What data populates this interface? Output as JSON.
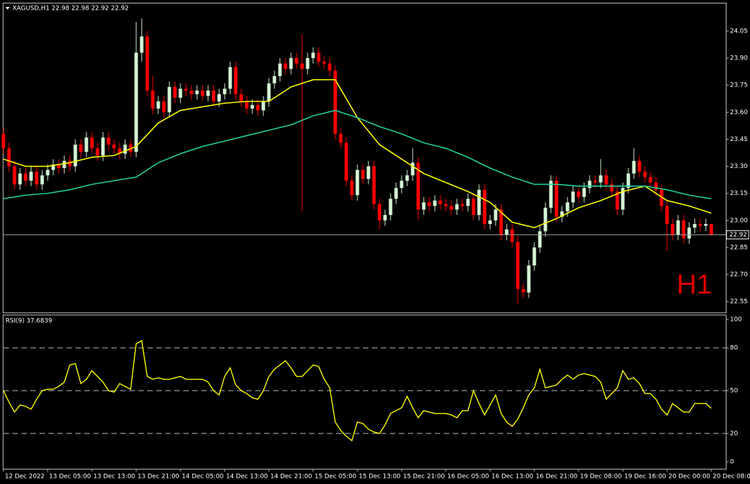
{
  "chart_data": [
    {
      "type": "candlestick",
      "title": "XAGUSD,H1  22.98 22.98 22.92 22.92",
      "watermark": "H1",
      "categories": [
        "12 Dec 2022",
        null,
        null,
        null,
        null,
        null,
        null,
        null,
        "13 Dec 05:00",
        null,
        null,
        null,
        null,
        null,
        null,
        null,
        "13 Dec 13:00",
        null,
        null,
        null,
        null,
        null,
        null,
        null,
        "13 Dec 21:00",
        null,
        null,
        null,
        null,
        null,
        null,
        null,
        "14 Dec 05:00",
        null,
        null,
        null,
        null,
        null,
        null,
        null,
        "14 Dec 13:00",
        null,
        null,
        null,
        null,
        null,
        null,
        null,
        "14 Dec 21:00",
        null,
        null,
        null,
        null,
        null,
        null,
        null,
        "15 Dec 05:00",
        null,
        null,
        null,
        null,
        null,
        null,
        null,
        "15 Dec 13:00",
        null,
        null,
        null,
        null,
        null,
        null,
        null,
        "15 Dec 21:00",
        null,
        null,
        null,
        null,
        null,
        null,
        null,
        "16 Dec 05:00",
        null,
        null,
        null,
        null,
        null,
        null,
        null,
        "16 Dec 13:00",
        null,
        null,
        null,
        null,
        null,
        null,
        null,
        "16 Dec 21:00",
        null,
        null,
        null,
        null,
        null,
        null,
        null,
        "19 Dec 08:00",
        null,
        null,
        null,
        null,
        null,
        null,
        null,
        "19 Dec 16:00",
        null,
        null,
        null,
        null,
        null,
        null,
        null,
        "20 Dec 00:00",
        null,
        null,
        null,
        null,
        null,
        null,
        null,
        "20 Dec 08:00"
      ],
      "open": [
        23.48,
        23.4,
        23.3,
        23.2,
        23.26,
        23.22,
        23.27,
        23.2,
        23.25,
        23.28,
        23.31,
        23.29,
        23.33,
        23.3,
        23.42,
        23.38,
        23.46,
        23.4,
        23.36,
        23.46,
        23.42,
        23.4,
        23.37,
        23.42,
        23.38,
        23.93,
        24.02,
        23.72,
        23.62,
        23.66,
        23.6,
        23.74,
        23.68,
        23.73,
        23.72,
        23.7,
        23.72,
        23.69,
        23.72,
        23.66,
        23.7,
        23.73,
        23.85,
        23.7,
        23.66,
        23.62,
        23.64,
        23.61,
        23.66,
        23.76,
        23.8,
        23.87,
        23.84,
        23.9,
        23.87,
        23.84,
        23.9,
        23.93,
        23.88,
        23.87,
        23.83,
        23.48,
        23.43,
        23.22,
        23.14,
        23.28,
        23.23,
        23.3,
        23.09,
        23.0,
        23.03,
        23.12,
        23.18,
        23.22,
        23.25,
        23.32,
        23.06,
        23.1,
        23.08,
        23.11,
        23.09,
        23.08,
        23.06,
        23.09,
        23.08,
        23.12,
        23.03,
        23.17,
        22.98,
        23.0,
        23.06,
        22.92,
        22.95,
        22.88,
        22.62,
        22.6,
        22.75,
        22.85,
        22.94,
        23.07,
        23.22,
        23.02,
        23.05,
        23.1,
        23.16,
        23.13,
        23.18,
        23.22,
        23.21,
        23.25,
        23.2,
        23.16,
        23.06,
        23.18,
        23.26,
        23.33,
        23.27,
        23.24,
        23.21,
        23.17,
        23.08,
        22.98,
        22.92,
        23.0,
        22.9,
        22.96,
        22.98,
        22.97,
        22.98
      ],
      "high": [
        23.51,
        23.43,
        23.33,
        23.29,
        23.29,
        23.3,
        23.3,
        23.28,
        23.31,
        23.34,
        23.34,
        23.36,
        23.36,
        23.45,
        23.45,
        23.49,
        23.49,
        23.43,
        23.49,
        23.49,
        23.45,
        23.43,
        23.45,
        23.45,
        24.1,
        24.12,
        24.05,
        23.8,
        23.69,
        23.69,
        23.77,
        23.77,
        23.76,
        23.76,
        23.75,
        23.75,
        23.75,
        23.75,
        23.75,
        23.73,
        23.76,
        23.88,
        23.88,
        23.73,
        23.69,
        23.67,
        23.67,
        23.69,
        23.79,
        23.83,
        23.9,
        23.9,
        23.93,
        23.93,
        24.03,
        23.93,
        23.96,
        23.96,
        23.91,
        23.9,
        23.86,
        23.51,
        23.46,
        23.25,
        23.31,
        23.31,
        23.33,
        23.33,
        23.12,
        23.06,
        23.15,
        23.21,
        23.25,
        23.28,
        23.4,
        23.35,
        23.13,
        23.13,
        23.14,
        23.14,
        23.12,
        23.11,
        23.12,
        23.12,
        23.15,
        23.15,
        23.2,
        23.2,
        23.03,
        23.09,
        23.09,
        22.98,
        22.98,
        22.91,
        22.65,
        22.78,
        22.88,
        22.97,
        23.1,
        23.25,
        23.25,
        23.08,
        23.13,
        23.19,
        23.19,
        23.21,
        23.25,
        23.25,
        23.34,
        23.28,
        23.23,
        23.19,
        23.21,
        23.29,
        23.4,
        23.36,
        23.3,
        23.27,
        23.24,
        23.2,
        23.11,
        23.01,
        23.03,
        23.03,
        22.99,
        23.01,
        23.01,
        23.01,
        22.98
      ],
      "low": [
        23.37,
        23.27,
        23.17,
        23.17,
        23.19,
        23.19,
        23.17,
        23.17,
        23.22,
        23.25,
        23.26,
        23.26,
        23.27,
        23.27,
        23.35,
        23.35,
        23.37,
        23.33,
        23.33,
        23.39,
        23.37,
        23.34,
        23.34,
        23.35,
        23.35,
        23.88,
        23.69,
        23.59,
        23.59,
        23.57,
        23.57,
        23.65,
        23.65,
        23.69,
        23.67,
        23.67,
        23.66,
        23.66,
        23.63,
        23.63,
        23.67,
        23.7,
        23.67,
        23.63,
        23.59,
        23.59,
        23.58,
        23.58,
        23.63,
        23.73,
        23.77,
        23.81,
        23.81,
        23.84,
        23.05,
        23.81,
        23.87,
        23.85,
        23.84,
        23.8,
        23.45,
        23.4,
        23.19,
        23.11,
        23.11,
        23.2,
        23.2,
        23.06,
        22.95,
        22.97,
        23.0,
        23.09,
        23.15,
        23.19,
        23.22,
        23.0,
        23.03,
        23.05,
        23.05,
        23.06,
        23.05,
        23.03,
        23.03,
        23.05,
        23.05,
        23.0,
        23.0,
        22.95,
        22.95,
        22.97,
        22.89,
        22.89,
        22.85,
        22.54,
        22.57,
        22.57,
        22.72,
        22.82,
        22.91,
        23.04,
        22.99,
        22.99,
        23.02,
        23.07,
        23.1,
        23.1,
        23.15,
        23.18,
        23.18,
        23.17,
        23.13,
        23.03,
        23.03,
        23.15,
        23.23,
        23.24,
        23.21,
        23.18,
        23.14,
        23.05,
        22.83,
        22.89,
        22.89,
        22.87,
        22.87,
        22.93,
        22.94,
        22.94,
        22.92
      ],
      "close": [
        23.4,
        23.3,
        23.2,
        23.26,
        23.22,
        23.27,
        23.2,
        23.25,
        23.28,
        23.31,
        23.29,
        23.33,
        23.3,
        23.42,
        23.38,
        23.46,
        23.4,
        23.36,
        23.46,
        23.42,
        23.4,
        23.37,
        23.42,
        23.38,
        23.93,
        24.02,
        23.72,
        23.62,
        23.66,
        23.6,
        23.74,
        23.68,
        23.73,
        23.72,
        23.7,
        23.72,
        23.69,
        23.72,
        23.66,
        23.7,
        23.73,
        23.85,
        23.7,
        23.66,
        23.62,
        23.64,
        23.61,
        23.66,
        23.76,
        23.8,
        23.87,
        23.84,
        23.9,
        23.87,
        23.84,
        23.9,
        23.93,
        23.88,
        23.87,
        23.83,
        23.48,
        23.43,
        23.22,
        23.14,
        23.28,
        23.23,
        23.3,
        23.09,
        23.0,
        23.03,
        23.12,
        23.18,
        23.22,
        23.25,
        23.32,
        23.06,
        23.1,
        23.08,
        23.11,
        23.09,
        23.08,
        23.06,
        23.09,
        23.08,
        23.12,
        23.03,
        23.17,
        22.98,
        23.0,
        23.06,
        22.92,
        22.95,
        22.88,
        22.62,
        22.6,
        22.75,
        22.85,
        22.94,
        23.07,
        23.22,
        23.02,
        23.05,
        23.1,
        23.16,
        23.13,
        23.18,
        23.22,
        23.21,
        23.25,
        23.2,
        23.16,
        23.06,
        23.18,
        23.26,
        23.33,
        23.27,
        23.24,
        23.21,
        23.17,
        23.08,
        22.98,
        22.92,
        23.0,
        22.9,
        22.96,
        22.98,
        22.97,
        22.98,
        22.92
      ],
      "up_color": "#d4f5d4",
      "down_color": "#ff0000",
      "overlays": [
        {
          "color": "#ffff00",
          "x": [
            0,
            4,
            8,
            12,
            16,
            20,
            24,
            28,
            32,
            36,
            40,
            44,
            48,
            52,
            56,
            60,
            64,
            68,
            72,
            76,
            80,
            84,
            88,
            92,
            96,
            100,
            104,
            108,
            112,
            116,
            120,
            124,
            128
          ],
          "values": [
            23.34,
            23.3,
            23.3,
            23.32,
            23.35,
            23.36,
            23.41,
            23.54,
            23.61,
            23.63,
            23.65,
            23.66,
            23.66,
            23.74,
            23.78,
            23.78,
            23.57,
            23.42,
            23.34,
            23.26,
            23.21,
            23.16,
            23.1,
            22.99,
            22.96,
            23.01,
            23.07,
            23.11,
            23.16,
            23.19,
            23.11,
            23.08,
            23.04
          ]
        },
        {
          "color": "#20d0a0",
          "x": [
            0,
            4,
            8,
            12,
            16,
            20,
            24,
            28,
            32,
            36,
            40,
            44,
            48,
            52,
            56,
            60,
            64,
            68,
            72,
            76,
            80,
            84,
            88,
            92,
            96,
            100,
            104,
            108,
            112,
            116,
            120,
            124,
            128
          ],
          "values": [
            23.12,
            23.14,
            23.15,
            23.17,
            23.2,
            23.22,
            23.24,
            23.32,
            23.37,
            23.41,
            23.44,
            23.47,
            23.5,
            23.53,
            23.58,
            23.61,
            23.57,
            23.52,
            23.48,
            23.43,
            23.4,
            23.35,
            23.29,
            23.24,
            23.2,
            23.2,
            23.19,
            23.19,
            23.19,
            23.19,
            23.17,
            23.14,
            23.12
          ]
        }
      ],
      "bid": 22.92,
      "ylim": [
        22.493,
        24.203
      ],
      "yticks": [
        24.05,
        {
          "value": 23.9,
          "label": "23.90"
        },
        23.75,
        {
          "value": 23.6,
          "label": "23.60"
        },
        23.45,
        {
          "value": 23.3,
          "label": "23.30"
        },
        23.15,
        {
          "value": 23.0,
          "label": "23.00"
        },
        22.85,
        {
          "value": 22.7,
          "label": "22.70"
        },
        22.55
      ]
    },
    {
      "type": "line",
      "title": "RSI(9) 37.6839",
      "color": "#ffff00",
      "values": [
        50,
        42,
        35,
        40,
        39,
        37,
        44,
        50,
        51,
        51,
        53,
        56,
        68,
        69,
        55,
        58,
        64,
        60,
        56,
        50,
        49,
        55,
        53,
        51,
        83,
        85,
        60,
        58,
        59,
        58,
        58,
        59,
        60,
        58,
        58,
        58,
        58,
        56,
        50,
        47,
        60,
        66,
        54,
        50,
        48,
        45,
        44,
        50,
        60,
        65,
        68,
        71,
        66,
        60,
        60,
        64,
        68,
        67,
        58,
        52,
        28,
        22,
        18,
        15,
        28,
        27,
        23,
        21,
        20,
        26,
        34,
        36,
        38,
        46,
        38,
        31,
        36,
        35,
        34,
        34,
        34,
        33,
        31,
        36,
        36,
        50,
        41,
        33,
        40,
        47,
        34,
        28,
        25,
        30,
        38,
        47,
        52,
        65,
        52,
        53,
        54,
        58,
        61,
        58,
        61,
        62,
        61,
        60,
        56,
        44,
        48,
        52,
        64,
        58,
        59,
        55,
        48,
        48,
        44,
        37,
        33,
        41,
        38,
        35,
        35,
        41,
        41,
        41,
        37.6839
      ],
      "ylim": [
        -4.3,
        102.4
      ],
      "yticks": [
        0,
        20,
        50,
        80,
        100
      ]
    }
  ]
}
